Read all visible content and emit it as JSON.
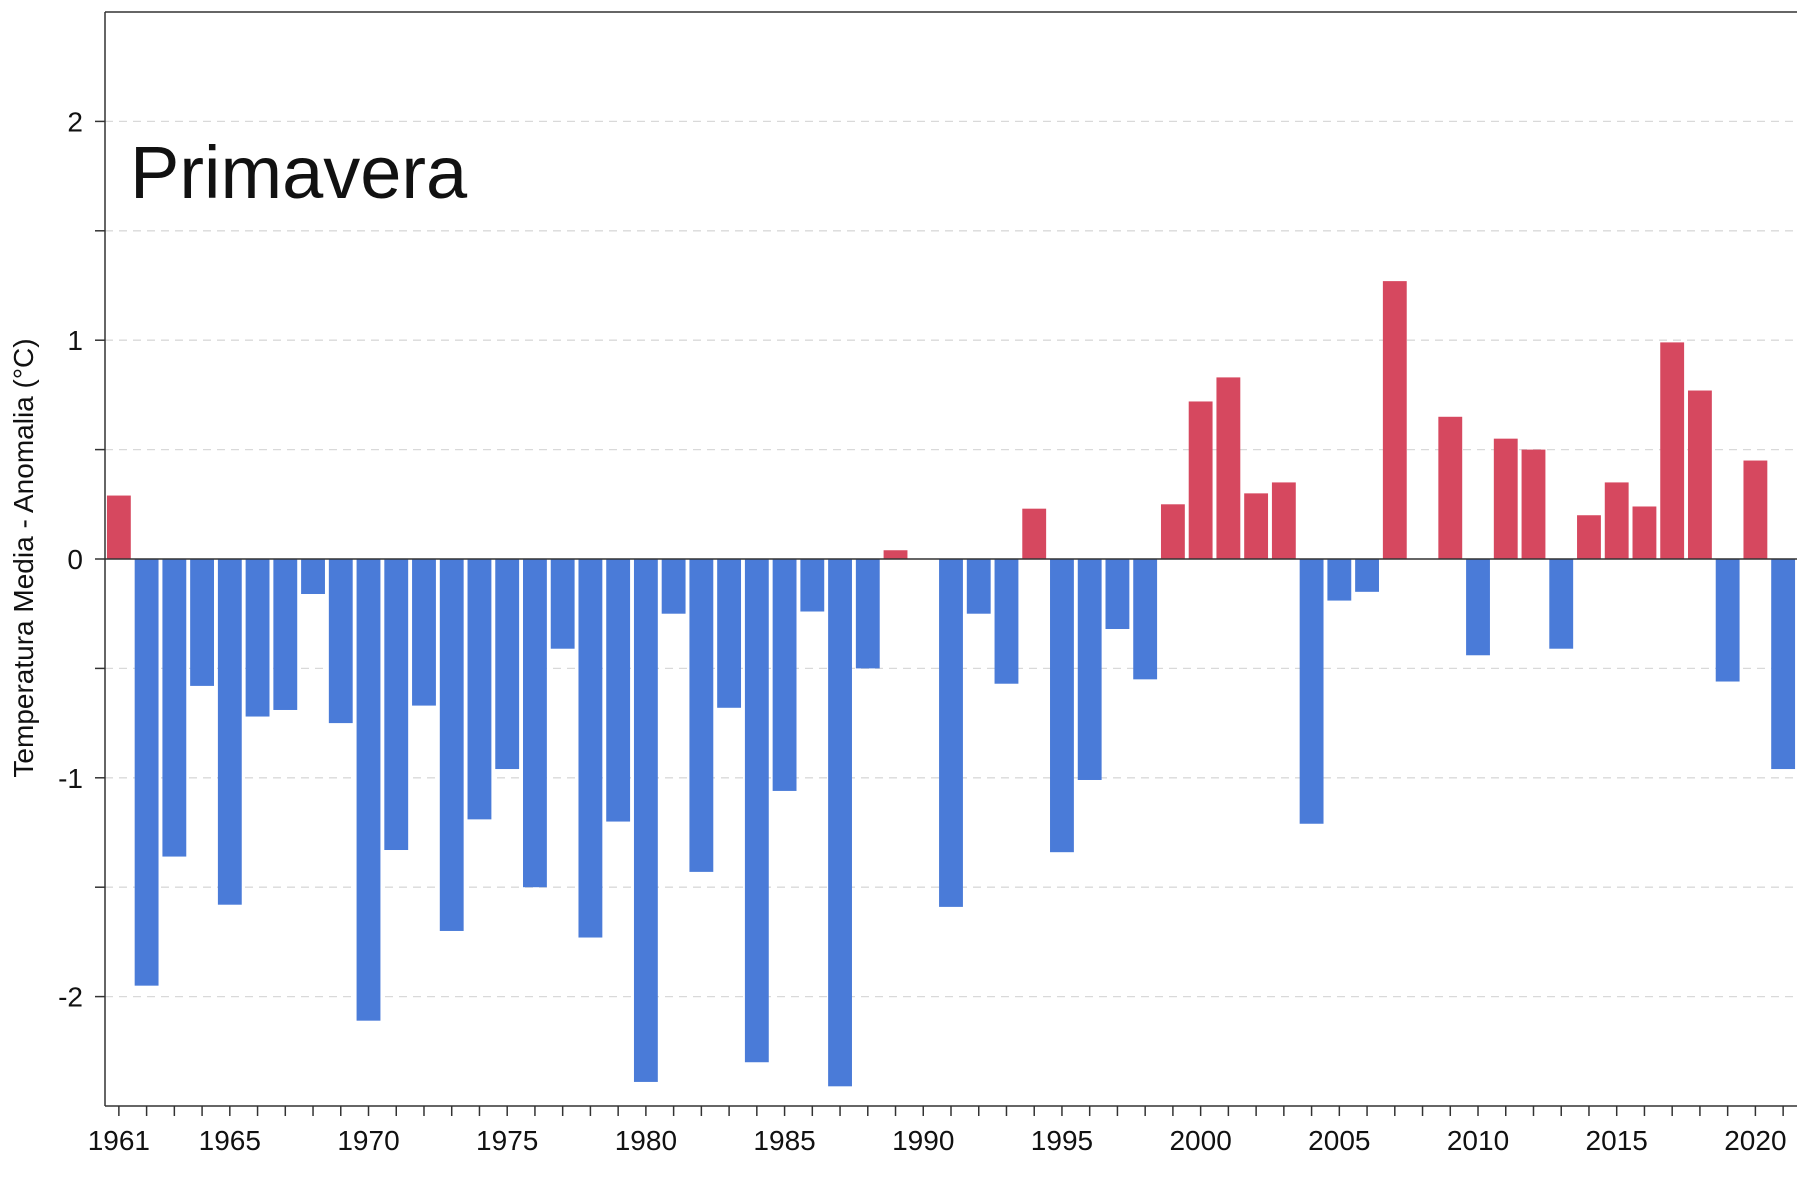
{
  "chart_data": {
    "type": "bar",
    "title": "Primavera",
    "ylabel": "Temperatura Media - Anomalia (°C)",
    "xlabel": "",
    "ylim": [
      -2.5,
      2.5
    ],
    "xlim": [
      1960.5,
      2021.5
    ],
    "yticks": [
      -2,
      -1,
      0,
      1,
      2
    ],
    "yminor_ticks": [
      -1.5,
      -0.5,
      0.5,
      1.5
    ],
    "xticks": [
      1961,
      1965,
      1970,
      1975,
      1980,
      1985,
      1990,
      1995,
      2000,
      2005,
      2010,
      2015,
      2020
    ],
    "grid": true,
    "colors": {
      "positive": "#d6485f",
      "negative": "#4a7bd8"
    },
    "categories": [
      1961,
      1962,
      1963,
      1964,
      1965,
      1966,
      1967,
      1968,
      1969,
      1970,
      1971,
      1972,
      1973,
      1974,
      1975,
      1976,
      1977,
      1978,
      1979,
      1980,
      1981,
      1982,
      1983,
      1984,
      1985,
      1986,
      1987,
      1988,
      1989,
      1990,
      1991,
      1992,
      1993,
      1994,
      1995,
      1996,
      1997,
      1998,
      1999,
      2000,
      2001,
      2002,
      2003,
      2004,
      2005,
      2006,
      2007,
      2008,
      2009,
      2010,
      2011,
      2012,
      2013,
      2014,
      2015,
      2016,
      2017,
      2018,
      2019,
      2020,
      2021
    ],
    "values": [
      0.29,
      -1.95,
      -1.36,
      -0.58,
      -1.58,
      -0.72,
      -0.69,
      -0.16,
      -0.75,
      -2.11,
      -1.33,
      -0.67,
      -1.7,
      -1.19,
      -0.96,
      -1.5,
      -0.41,
      -1.73,
      -1.2,
      -2.39,
      -0.25,
      -1.43,
      -0.68,
      -2.3,
      -1.06,
      -0.24,
      -2.41,
      -0.5,
      0.04,
      0.0,
      -1.59,
      -0.25,
      -0.57,
      0.23,
      -1.34,
      -1.01,
      -0.32,
      -0.55,
      0.25,
      0.72,
      0.83,
      0.3,
      0.35,
      -1.21,
      -0.19,
      -0.15,
      1.27,
      0.0,
      0.65,
      -0.44,
      0.55,
      0.5,
      -0.41,
      0.2,
      0.35,
      0.24,
      0.99,
      0.77,
      -0.56,
      0.45,
      -0.96
    ]
  }
}
